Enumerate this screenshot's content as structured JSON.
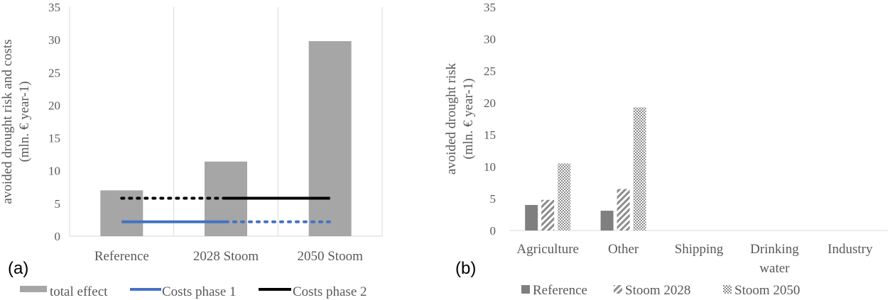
{
  "chart_data": [
    {
      "panel": "(a)",
      "type": "bar",
      "ylabel": [
        "avoided drought risk and costs",
        "(mln. € year-1)"
      ],
      "ylim": [
        0,
        35
      ],
      "yticks": [
        0,
        5,
        10,
        15,
        20,
        25,
        30,
        35
      ],
      "grid": "vertical category gridlines",
      "categories": [
        "Reference",
        "2028 Stoom",
        "2050 Stoom"
      ],
      "series": [
        {
          "name": "total effect",
          "kind": "bar",
          "color": "#a6a6a6",
          "values": [
            7.0,
            11.4,
            29.8
          ]
        },
        {
          "name": "Costs phase 1",
          "kind": "line",
          "color": "#4472c4",
          "value": 2.2,
          "solid_span": [
            "Reference",
            "2028 Stoom"
          ],
          "dotted_span": [
            "2028 Stoom",
            "2050 Stoom"
          ]
        },
        {
          "name": "Costs phase 2",
          "kind": "line",
          "color": "#000000",
          "value": 5.8,
          "dotted_span": [
            "Reference",
            "2028 Stoom"
          ],
          "solid_span": [
            "2028 Stoom",
            "2050 Stoom"
          ]
        }
      ],
      "legend": "bottom"
    },
    {
      "panel": "(b)",
      "type": "bar",
      "ylabel": [
        "avoided drought risk",
        "(mln. € year-1)"
      ],
      "ylim": [
        0,
        35
      ],
      "yticks": [
        0,
        5,
        10,
        15,
        20,
        25,
        30,
        35
      ],
      "categories": [
        "Agriculture",
        "Other",
        "Shipping",
        "Drinking water",
        "Industry"
      ],
      "series": [
        {
          "name": "Reference",
          "pattern": "solid",
          "color": "#7f7f7f",
          "values": [
            4.0,
            3.1,
            0,
            0,
            0
          ]
        },
        {
          "name": "Stoom 2028",
          "pattern": "diagonal",
          "color": "#7f7f7f",
          "values": [
            4.8,
            6.5,
            0,
            0,
            0
          ]
        },
        {
          "name": "Stoom 2050",
          "pattern": "crosshatch",
          "color": "#7f7f7f",
          "values": [
            10.5,
            19.3,
            0,
            0,
            0
          ]
        }
      ],
      "legend": "bottom"
    }
  ]
}
